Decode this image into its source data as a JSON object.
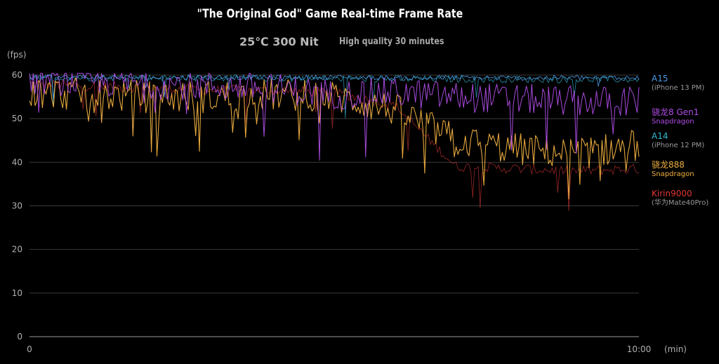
{
  "header": {
    "title": "\"The Original God\" Game Real-time Frame Rate",
    "subtitle": "25℃ 300 Nit",
    "condition": "High quality 30 minutes"
  },
  "legend": [
    {
      "name": "A15",
      "sub": "(iPhone 13 PM)",
      "name_color": "#4d9be8",
      "sub_color": "#9a9a9a"
    },
    {
      "name": "骁龙8 Gen1",
      "sub": "Snapdragon",
      "name_color": "#b14ee8",
      "sub_color": "#b14ee8"
    },
    {
      "name": "A14",
      "sub": "(iPhone 12 PM)",
      "name_color": "#35b9d6",
      "sub_color": "#9a9a9a"
    },
    {
      "name": "骁龙888",
      "sub": "Snapdragon",
      "name_color": "#f0b040",
      "sub_color": "#f0b040"
    },
    {
      "name": "Kirin9000",
      "sub": "(华为Mate40Pro)",
      "name_color": "#e03838",
      "sub_color": "#9a9a9a"
    }
  ],
  "chart_data": {
    "type": "line",
    "title": "\"The Original God\" Game Real-time Frame Rate",
    "subtitle": "25℃ 300 Nit",
    "ylabel": "(fps)",
    "xlabel": "(min)",
    "ylim": [
      0,
      60
    ],
    "yticks": [
      "0",
      "10",
      "20",
      "30",
      "40",
      "50",
      "60"
    ],
    "xlim": [
      0,
      10
    ],
    "xticks": [
      "0",
      "10:00"
    ],
    "grid": true,
    "legend_position": "right",
    "series": [
      {
        "name": "A15 (iPhone 13 PM)",
        "color": "#4d9be8",
        "x": [
          0,
          1,
          2,
          3,
          4,
          5,
          6,
          7,
          8,
          9,
          10
        ],
        "values": [
          59.5,
          59.5,
          59.4,
          59.5,
          59.4,
          59.5,
          59.3,
          59.4,
          59.3,
          59.4,
          59.3
        ]
      },
      {
        "name": "骁龙8 Gen1 Snapdragon",
        "color": "#b14ee8",
        "x": [
          0,
          1,
          2,
          3,
          4,
          5,
          6,
          7,
          8,
          9,
          10
        ],
        "values": [
          59,
          58.5,
          58,
          57.5,
          57,
          55.5,
          56,
          55,
          54.5,
          54,
          54
        ]
      },
      {
        "name": "A14 (iPhone 12 PM)",
        "color": "#35b9d6",
        "x": [
          0,
          1,
          2,
          3,
          4,
          5,
          6,
          7,
          8,
          9,
          10
        ],
        "values": [
          59.5,
          59.4,
          59.4,
          59.3,
          59.2,
          59.2,
          59.1,
          59.1,
          59,
          59,
          59
        ]
      },
      {
        "name": "骁龙888 Snapdragon",
        "color": "#f0b040",
        "x": [
          0,
          1,
          2,
          3,
          4,
          5,
          6,
          7,
          8,
          9,
          10
        ],
        "values": [
          56,
          55.5,
          55,
          55,
          55.5,
          55,
          52,
          45,
          43,
          42,
          44
        ]
      },
      {
        "name": "Kirin9000 (华为Mate40Pro)",
        "color": "#e03838",
        "x": [
          0,
          1,
          2,
          3,
          4,
          5,
          6,
          7,
          8,
          9,
          10
        ],
        "values": [
          58,
          57.5,
          57,
          56.5,
          56.5,
          56,
          53,
          39,
          38.5,
          38,
          38.5
        ]
      }
    ]
  }
}
